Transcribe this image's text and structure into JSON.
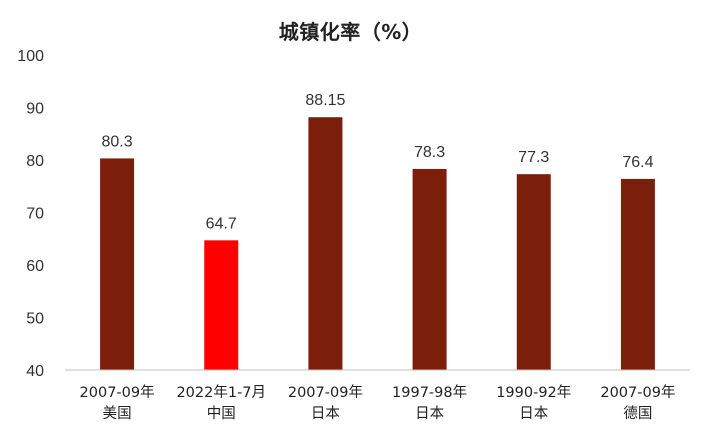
{
  "chart_data": {
    "type": "bar",
    "title": "城镇化率（%）",
    "categories": [
      [
        "2007-09年",
        "美国"
      ],
      [
        "2022年1-7月",
        "中国"
      ],
      [
        "2007-09年",
        "日本"
      ],
      [
        "1997-98年",
        "日本"
      ],
      [
        "1990-92年",
        "日本"
      ],
      [
        "2007-09年",
        "德国"
      ]
    ],
    "values": [
      80.3,
      64.7,
      88.15,
      78.3,
      77.3,
      76.4
    ],
    "data_labels": [
      "80.3",
      "64.7",
      "88.15",
      "78.3",
      "77.3",
      "76.4"
    ],
    "ylim": [
      40,
      100
    ],
    "yticks": [
      40,
      50,
      60,
      70,
      80,
      90,
      100
    ],
    "xlabel": "",
    "ylabel": "",
    "grid": false,
    "legend": "none",
    "colors": {
      "default_bar": "#7B1E0A",
      "highlight_bar": "#FF0000",
      "axis": "#BFBFBF"
    },
    "highlight_index": 1
  }
}
